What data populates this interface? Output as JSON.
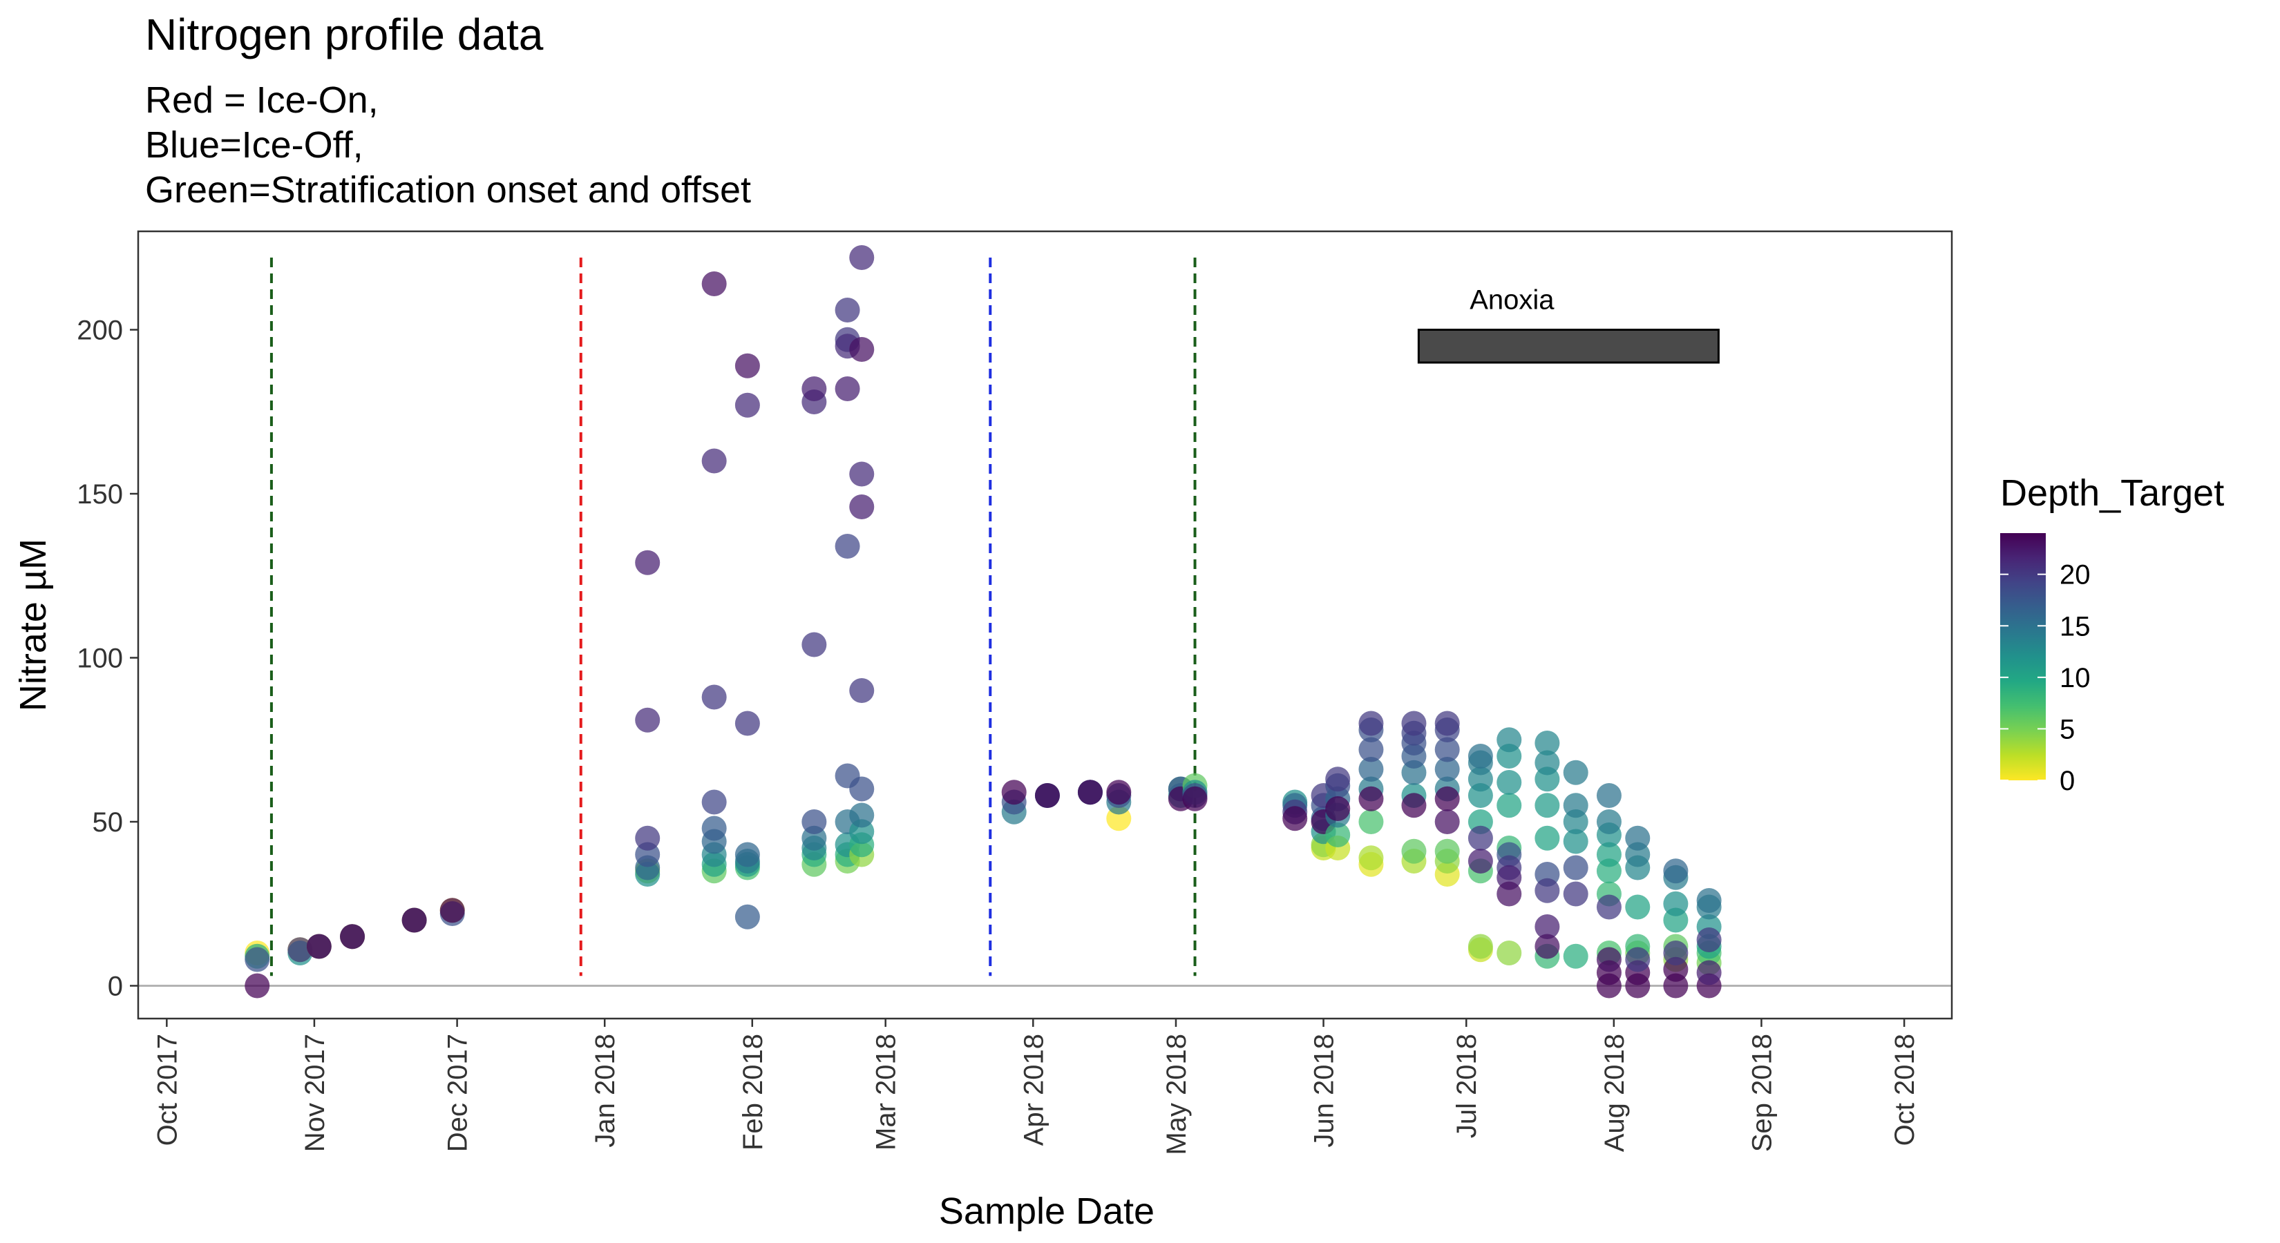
{
  "chart_data": {
    "type": "scatter",
    "title": "Nitrogen profile data",
    "subtitle_lines": [
      "Red = Ice-On,",
      "Blue=Ice-Off,",
      "Green=Stratification onset and offset"
    ],
    "xlabel": "Sample Date",
    "ylabel": "Nitrate µM",
    "xlim": [
      "2017-09-25",
      "2018-10-11"
    ],
    "ylim": [
      -10,
      230
    ],
    "x_ticks": [
      {
        "date": "2017-10-01",
        "label": "Oct 2017"
      },
      {
        "date": "2017-11-01",
        "label": "Nov 2017"
      },
      {
        "date": "2017-12-01",
        "label": "Dec 2017"
      },
      {
        "date": "2018-01-01",
        "label": "Jan 2018"
      },
      {
        "date": "2018-02-01",
        "label": "Feb 2018"
      },
      {
        "date": "2018-03-01",
        "label": "Mar 2018"
      },
      {
        "date": "2018-04-01",
        "label": "Apr 2018"
      },
      {
        "date": "2018-05-01",
        "label": "May 2018"
      },
      {
        "date": "2018-06-01",
        "label": "Jun 2018"
      },
      {
        "date": "2018-07-01",
        "label": "Jul 2018"
      },
      {
        "date": "2018-08-01",
        "label": "Aug 2018"
      },
      {
        "date": "2018-09-01",
        "label": "Sep 2018"
      },
      {
        "date": "2018-10-01",
        "label": "Oct 2018"
      }
    ],
    "y_ticks": [
      0,
      50,
      100,
      150,
      200
    ],
    "grid": false,
    "hline": {
      "y": 0,
      "color": "#b3b3b3"
    },
    "vlines": [
      {
        "date": "2017-10-23",
        "color": "#1a5e1a",
        "style": "dashed",
        "meaning": "Stratification offset"
      },
      {
        "date": "2017-12-27",
        "color": "#e41a1c",
        "style": "dashed",
        "meaning": "Ice-On"
      },
      {
        "date": "2018-03-23",
        "color": "#1f2fe0",
        "style": "dashed",
        "meaning": "Ice-Off"
      },
      {
        "date": "2018-05-05",
        "color": "#1a5e1a",
        "style": "dashed",
        "meaning": "Stratification onset"
      }
    ],
    "annotation": {
      "label": "Anoxia",
      "x_start": "2018-06-21",
      "x_end": "2018-08-23",
      "y_low": 190,
      "y_high": 200,
      "fill": "#4a4a4a"
    },
    "color_scale": {
      "name": "Depth_Target",
      "palette": "viridis-reversed",
      "min": 0,
      "max": 24,
      "ticks": [
        0,
        5,
        10,
        15,
        20
      ],
      "legend_position": "right"
    },
    "series": [
      {
        "date": "2017-10-20",
        "points": [
          [
            0,
            10
          ],
          [
            9,
            9
          ],
          [
            18,
            8
          ],
          [
            24,
            0
          ]
        ]
      },
      {
        "date": "2017-10-29",
        "points": [
          [
            0,
            11
          ],
          [
            12,
            10
          ],
          [
            20,
            11
          ]
        ]
      },
      {
        "date": "2017-11-02",
        "points": [
          [
            1,
            12
          ],
          [
            18,
            12
          ],
          [
            24,
            12
          ]
        ]
      },
      {
        "date": "2017-11-09",
        "points": [
          [
            1,
            15
          ],
          [
            18,
            15
          ],
          [
            24,
            15
          ]
        ]
      },
      {
        "date": "2017-11-22",
        "points": [
          [
            1,
            20
          ],
          [
            18,
            20
          ],
          [
            24,
            20
          ]
        ]
      },
      {
        "date": "2017-11-30",
        "points": [
          [
            1,
            23
          ],
          [
            18,
            22
          ],
          [
            24,
            23
          ]
        ]
      },
      {
        "date": "2018-01-10",
        "points": [
          [
            4,
            35
          ],
          [
            12,
            34
          ],
          [
            16,
            36
          ],
          [
            18,
            40
          ],
          [
            20,
            45
          ],
          [
            21,
            81
          ],
          [
            22,
            129
          ]
        ]
      },
      {
        "date": "2018-01-24",
        "points": [
          [
            6,
            35
          ],
          [
            10,
            37
          ],
          [
            13,
            40
          ],
          [
            16,
            44
          ],
          [
            17,
            48
          ],
          [
            19,
            56
          ],
          [
            20,
            88
          ],
          [
            21,
            160
          ],
          [
            23,
            214
          ]
        ]
      },
      {
        "date": "2018-01-31",
        "points": [
          [
            7,
            36
          ],
          [
            11,
            37
          ],
          [
            14,
            38
          ],
          [
            16,
            40
          ],
          [
            17,
            21
          ],
          [
            20,
            80
          ],
          [
            21,
            177
          ],
          [
            23,
            189
          ]
        ]
      },
      {
        "date": "2018-02-14",
        "points": [
          [
            6,
            37
          ],
          [
            9,
            40
          ],
          [
            13,
            42
          ],
          [
            15,
            45
          ],
          [
            18,
            50
          ],
          [
            20,
            104
          ],
          [
            21,
            178
          ],
          [
            22,
            182
          ]
        ]
      },
      {
        "date": "2018-02-21",
        "points": [
          [
            5,
            38
          ],
          [
            9,
            40
          ],
          [
            12,
            43
          ],
          [
            15,
            50
          ],
          [
            18,
            64
          ],
          [
            19,
            134
          ],
          [
            20,
            197
          ],
          [
            21,
            195
          ],
          [
            22,
            182
          ],
          [
            20,
            206
          ]
        ]
      },
      {
        "date": "2018-02-24",
        "points": [
          [
            4,
            40
          ],
          [
            9,
            43
          ],
          [
            12,
            47
          ],
          [
            15,
            52
          ],
          [
            18,
            60
          ],
          [
            20,
            90
          ],
          [
            21,
            156
          ],
          [
            22,
            146
          ],
          [
            23,
            194
          ],
          [
            21,
            222
          ]
        ]
      },
      {
        "date": "2018-03-28",
        "points": [
          [
            14,
            53
          ],
          [
            18,
            56
          ],
          [
            24,
            59
          ]
        ]
      },
      {
        "date": "2018-04-04",
        "points": [
          [
            14,
            58
          ],
          [
            18,
            58
          ],
          [
            24,
            58
          ]
        ]
      },
      {
        "date": "2018-04-13",
        "points": [
          [
            14,
            59
          ],
          [
            18,
            59
          ],
          [
            24,
            59
          ]
        ]
      },
      {
        "date": "2018-04-19",
        "points": [
          [
            0,
            51
          ],
          [
            14,
            56
          ],
          [
            18,
            58
          ],
          [
            24,
            59
          ]
        ]
      },
      {
        "date": "2018-05-02",
        "points": [
          [
            9,
            60
          ],
          [
            13,
            58
          ],
          [
            18,
            60
          ],
          [
            24,
            57
          ]
        ]
      },
      {
        "date": "2018-05-05",
        "points": [
          [
            6,
            61
          ],
          [
            12,
            59
          ],
          [
            18,
            58
          ],
          [
            24,
            57
          ]
        ]
      },
      {
        "date": "2018-05-26",
        "points": [
          [
            12,
            56
          ],
          [
            16,
            55
          ],
          [
            20,
            53
          ],
          [
            24,
            51
          ]
        ]
      },
      {
        "date": "2018-06-01",
        "points": [
          [
            2,
            42
          ],
          [
            4,
            43
          ],
          [
            12,
            47
          ],
          [
            16,
            51
          ],
          [
            18,
            55
          ],
          [
            20,
            58
          ],
          [
            24,
            50
          ]
        ]
      },
      {
        "date": "2018-06-04",
        "points": [
          [
            2,
            42
          ],
          [
            8,
            46
          ],
          [
            14,
            52
          ],
          [
            16,
            57
          ],
          [
            18,
            61
          ],
          [
            20,
            63
          ],
          [
            24,
            54
          ]
        ]
      },
      {
        "date": "2018-06-11",
        "points": [
          [
            1,
            37
          ],
          [
            3,
            39
          ],
          [
            7,
            50
          ],
          [
            14,
            60
          ],
          [
            16,
            66
          ],
          [
            18,
            72
          ],
          [
            18,
            78
          ],
          [
            20,
            80
          ],
          [
            24,
            57
          ]
        ]
      },
      {
        "date": "2018-06-20",
        "points": [
          [
            3,
            38
          ],
          [
            6,
            41
          ],
          [
            12,
            58
          ],
          [
            15,
            65
          ],
          [
            17,
            70
          ],
          [
            18,
            74
          ],
          [
            19,
            77
          ],
          [
            20,
            80
          ],
          [
            24,
            55
          ]
        ]
      },
      {
        "date": "2018-06-27",
        "points": [
          [
            1,
            34
          ],
          [
            4,
            38
          ],
          [
            6,
            41
          ],
          [
            14,
            60
          ],
          [
            16,
            66
          ],
          [
            18,
            72
          ],
          [
            19,
            78
          ],
          [
            20,
            80
          ],
          [
            24,
            57
          ],
          [
            23,
            50
          ]
        ]
      },
      {
        "date": "2018-07-04",
        "points": [
          [
            2,
            11
          ],
          [
            4,
            12
          ],
          [
            7,
            35
          ],
          [
            10,
            50
          ],
          [
            12,
            58
          ],
          [
            13,
            63
          ],
          [
            14,
            68
          ],
          [
            15,
            70
          ],
          [
            20,
            45
          ],
          [
            22,
            38
          ]
        ]
      },
      {
        "date": "2018-07-10",
        "points": [
          [
            4,
            10
          ],
          [
            8,
            42
          ],
          [
            10,
            55
          ],
          [
            12,
            62
          ],
          [
            12,
            70
          ],
          [
            13,
            75
          ],
          [
            18,
            40
          ],
          [
            20,
            36
          ],
          [
            22,
            33
          ],
          [
            23,
            28
          ]
        ]
      },
      {
        "date": "2018-07-18",
        "points": [
          [
            8,
            9
          ],
          [
            10,
            45
          ],
          [
            11,
            55
          ],
          [
            12,
            63
          ],
          [
            13,
            68
          ],
          [
            13,
            74
          ],
          [
            18,
            34
          ],
          [
            20,
            29
          ],
          [
            22,
            18
          ],
          [
            23,
            12
          ]
        ]
      },
      {
        "date": "2018-07-24",
        "points": [
          [
            9,
            9
          ],
          [
            12,
            44
          ],
          [
            13,
            50
          ],
          [
            14,
            55
          ],
          [
            14,
            65
          ],
          [
            18,
            36
          ],
          [
            20,
            28
          ]
        ]
      },
      {
        "date": "2018-07-31",
        "points": [
          [
            7,
            10
          ],
          [
            8,
            28
          ],
          [
            9,
            35
          ],
          [
            10,
            40
          ],
          [
            12,
            46
          ],
          [
            14,
            50
          ],
          [
            15,
            58
          ],
          [
            24,
            0
          ],
          [
            24,
            4
          ],
          [
            23,
            8
          ],
          [
            20,
            24
          ]
        ]
      },
      {
        "date": "2018-08-06",
        "points": [
          [
            5,
            10
          ],
          [
            8,
            12
          ],
          [
            10,
            24
          ],
          [
            13,
            36
          ],
          [
            14,
            40
          ],
          [
            15,
            45
          ],
          [
            24,
            0
          ],
          [
            24,
            4
          ],
          [
            20,
            8
          ]
        ]
      },
      {
        "date": "2018-08-14",
        "points": [
          [
            4,
            8
          ],
          [
            6,
            12
          ],
          [
            10,
            20
          ],
          [
            12,
            25
          ],
          [
            14,
            33
          ],
          [
            16,
            35
          ],
          [
            24,
            0
          ],
          [
            24,
            5
          ],
          [
            20,
            10
          ]
        ]
      },
      {
        "date": "2018-08-21",
        "points": [
          [
            5,
            7
          ],
          [
            7,
            10
          ],
          [
            10,
            12
          ],
          [
            12,
            18
          ],
          [
            14,
            24
          ],
          [
            15,
            26
          ],
          [
            24,
            0
          ],
          [
            22,
            4
          ],
          [
            20,
            14
          ]
        ]
      }
    ]
  }
}
